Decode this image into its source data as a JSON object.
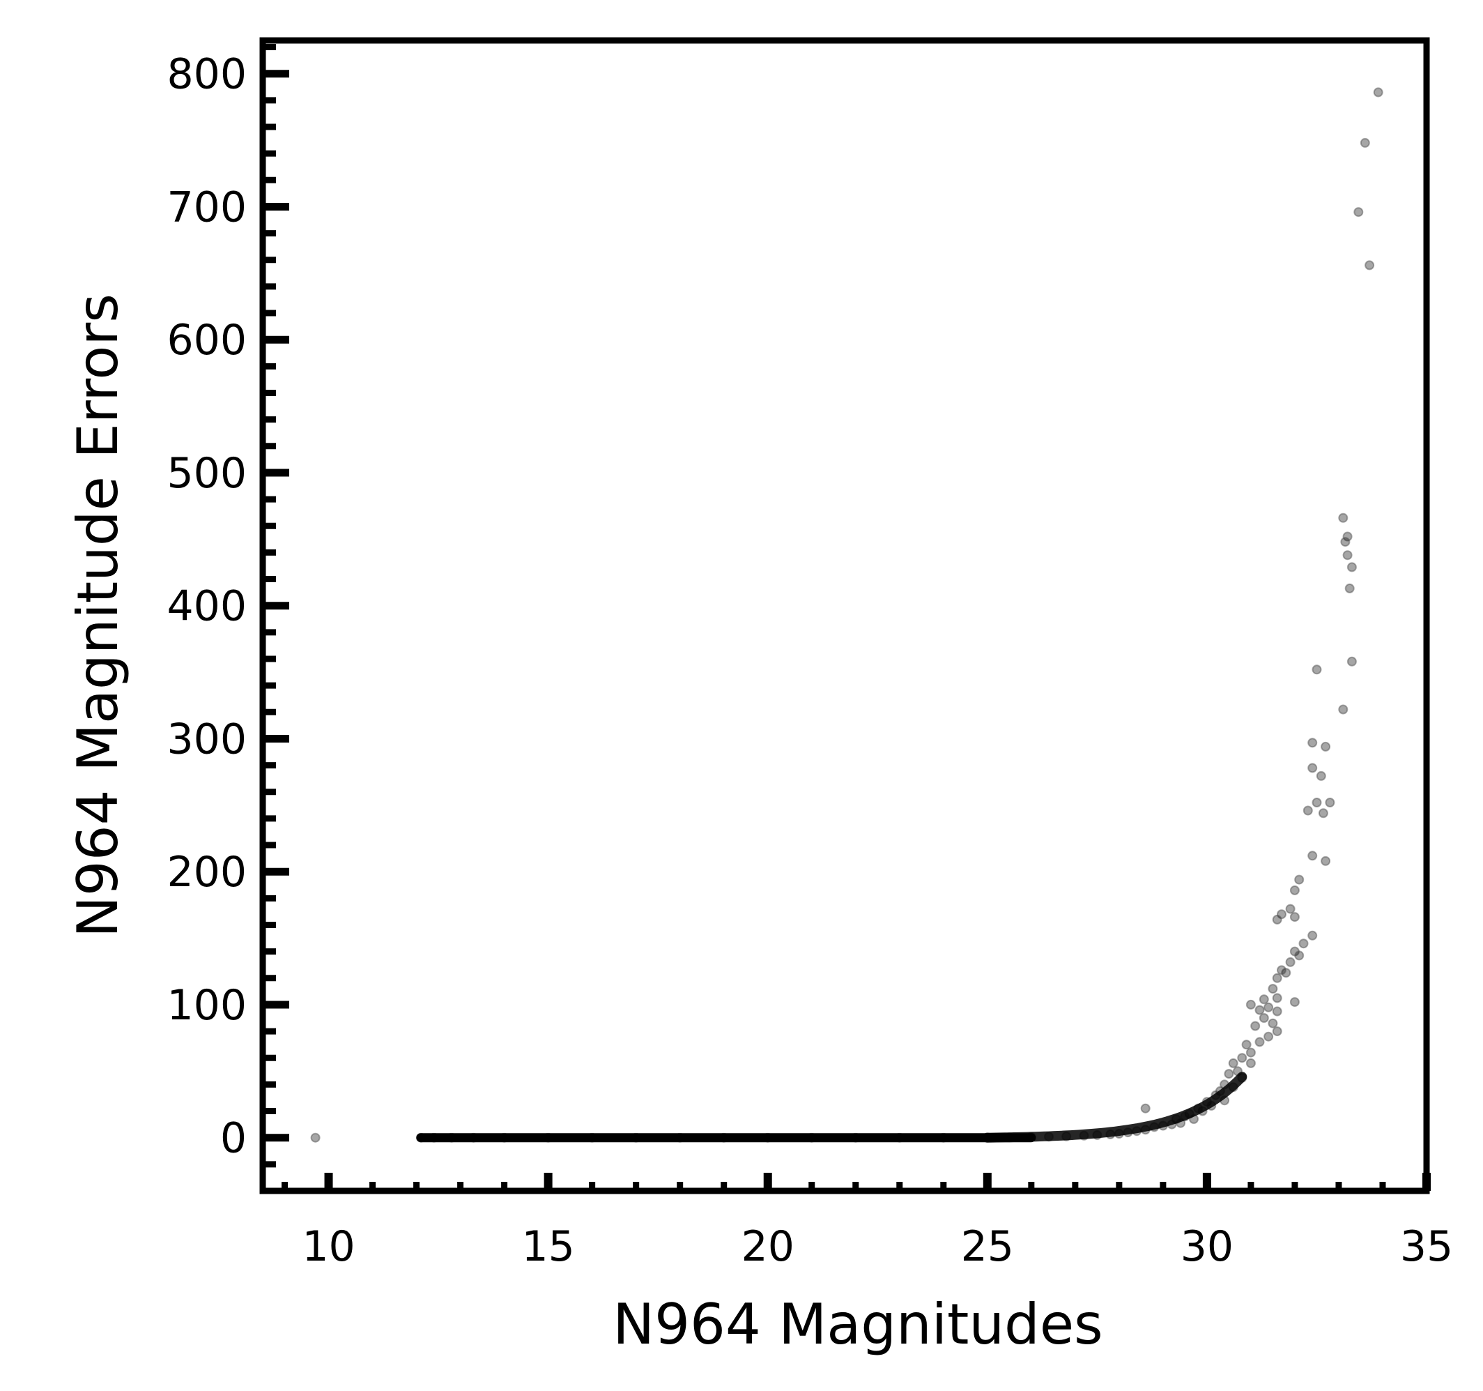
{
  "chart_data": {
    "type": "scatter",
    "xlabel": "N964 Magnitudes",
    "ylabel": "N964 Magnitude Errors",
    "xlim": [
      8.5,
      35
    ],
    "ylim": [
      -40,
      825
    ],
    "x_ticks": [
      "10",
      "15",
      "20",
      "25",
      "30",
      "35"
    ],
    "y_ticks": [
      "0",
      "100",
      "200",
      "300",
      "400",
      "500",
      "600",
      "700",
      "800"
    ],
    "grid": false,
    "legend": "none",
    "marker_color": "#000000",
    "points": [
      [
        9.7,
        0
      ],
      [
        33.9,
        786
      ],
      [
        33.6,
        748
      ],
      [
        33.45,
        696
      ],
      [
        33.7,
        656
      ],
      [
        33.1,
        466
      ],
      [
        33.2,
        452
      ],
      [
        33.15,
        448
      ],
      [
        33.2,
        438
      ],
      [
        33.3,
        429
      ],
      [
        33.25,
        413
      ],
      [
        33.3,
        358
      ],
      [
        33.1,
        322
      ],
      [
        32.5,
        352
      ],
      [
        32.4,
        297
      ],
      [
        32.7,
        294
      ],
      [
        32.4,
        278
      ],
      [
        32.6,
        272
      ],
      [
        32.5,
        252
      ],
      [
        32.3,
        246
      ],
      [
        32.8,
        252
      ],
      [
        32.65,
        244
      ],
      [
        32.4,
        212
      ],
      [
        32.7,
        208
      ],
      [
        32.1,
        194
      ],
      [
        32.0,
        186
      ],
      [
        31.7,
        168
      ],
      [
        31.6,
        164
      ],
      [
        31.9,
        172
      ],
      [
        32.0,
        166
      ],
      [
        32.4,
        152
      ],
      [
        32.2,
        146
      ],
      [
        32.0,
        140
      ],
      [
        31.9,
        132
      ],
      [
        32.1,
        137
      ],
      [
        31.8,
        124
      ],
      [
        31.6,
        120
      ],
      [
        31.7,
        126
      ],
      [
        32.0,
        102
      ],
      [
        31.5,
        112
      ],
      [
        31.6,
        105
      ],
      [
        31.3,
        104
      ],
      [
        31.4,
        98
      ],
      [
        31.0,
        100
      ],
      [
        31.2,
        96
      ],
      [
        31.6,
        95
      ],
      [
        31.5,
        86
      ],
      [
        31.6,
        80
      ],
      [
        31.3,
        90
      ],
      [
        31.1,
        84
      ],
      [
        31.4,
        76
      ],
      [
        31.2,
        72
      ],
      [
        30.9,
        70
      ],
      [
        31.0,
        64
      ],
      [
        30.8,
        60
      ],
      [
        31.0,
        56
      ],
      [
        30.6,
        56
      ],
      [
        30.7,
        50
      ],
      [
        30.5,
        48
      ],
      [
        30.8,
        45
      ],
      [
        30.4,
        40
      ],
      [
        30.6,
        38
      ],
      [
        30.3,
        35
      ],
      [
        30.2,
        32
      ],
      [
        30.4,
        28
      ],
      [
        30.0,
        27
      ],
      [
        30.1,
        24
      ],
      [
        29.9,
        20
      ],
      [
        29.8,
        22
      ],
      [
        29.6,
        18
      ],
      [
        29.5,
        16
      ],
      [
        29.7,
        14
      ],
      [
        29.3,
        14
      ],
      [
        29.4,
        11
      ],
      [
        29.2,
        10
      ],
      [
        29.0,
        9
      ],
      [
        28.8,
        8
      ],
      [
        28.6,
        22
      ],
      [
        28.6,
        6
      ],
      [
        28.4,
        5
      ],
      [
        28.2,
        4
      ],
      [
        28.0,
        3
      ],
      [
        27.8,
        2.5
      ],
      [
        27.5,
        2
      ],
      [
        27.2,
        1.5
      ],
      [
        26.8,
        1
      ],
      [
        26.4,
        0.8
      ],
      [
        26.0,
        0.5
      ],
      [
        25.5,
        0.3
      ],
      [
        25.0,
        0.2
      ],
      [
        12.1,
        0
      ],
      [
        12.4,
        0
      ],
      [
        12.8,
        0
      ],
      [
        13.3,
        0
      ],
      [
        14.0,
        0
      ],
      [
        15.0,
        0
      ],
      [
        16.0,
        0
      ],
      [
        17.0,
        0
      ],
      [
        18.0,
        0
      ],
      [
        19.0,
        0
      ],
      [
        20.0,
        0
      ],
      [
        21.0,
        0
      ],
      [
        22.0,
        0
      ],
      [
        23.0,
        0
      ],
      [
        24.0,
        0
      ]
    ]
  }
}
